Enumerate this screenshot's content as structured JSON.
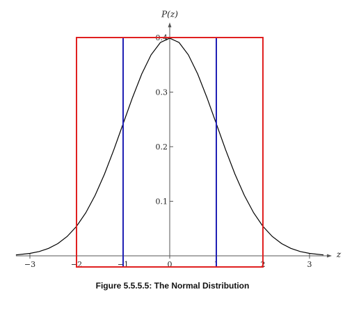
{
  "chart_data": {
    "type": "line",
    "title": "",
    "xlabel": "z",
    "ylabel": "P(z)",
    "xlim": [
      -3.3,
      3.3
    ],
    "ylim": [
      0,
      0.42
    ],
    "x_ticks": [
      -3,
      -2,
      -1,
      0,
      1,
      2,
      3
    ],
    "x_tick_labels": [
      "−3",
      "−2",
      "−1",
      "0",
      "1",
      "2",
      "3"
    ],
    "y_ticks": [
      0.1,
      0.2,
      0.3,
      0.4
    ],
    "y_tick_labels": [
      "0.1",
      "0.2",
      "0.3",
      "0.4"
    ],
    "grid": false,
    "series": [
      {
        "color": "#000000",
        "x": [
          -3.3,
          -3.0,
          -2.8,
          -2.6,
          -2.4,
          -2.2,
          -2.0,
          -1.8,
          -1.6,
          -1.4,
          -1.2,
          -1.0,
          -0.8,
          -0.6,
          -0.4,
          -0.2,
          0.0,
          0.2,
          0.4,
          0.6,
          0.8,
          1.0,
          1.2,
          1.4,
          1.6,
          1.8,
          2.0,
          2.2,
          2.4,
          2.6,
          2.8,
          3.0,
          3.3
        ],
        "y": [
          0.0017,
          0.0044,
          0.0079,
          0.0136,
          0.0224,
          0.0355,
          0.054,
          0.079,
          0.1109,
          0.1497,
          0.1942,
          0.242,
          0.2897,
          0.3332,
          0.3683,
          0.391,
          0.3989,
          0.391,
          0.3683,
          0.3332,
          0.2897,
          0.242,
          0.1942,
          0.1497,
          0.1109,
          0.079,
          0.054,
          0.0355,
          0.0224,
          0.0136,
          0.0079,
          0.0044,
          0.0017
        ]
      }
    ],
    "rectangles": [
      {
        "x0": -1,
        "x1": 1,
        "y0": 0,
        "y1": 0.4,
        "color": "#1f1fb4"
      },
      {
        "x0": -2,
        "x1": 2,
        "y0": 0,
        "y1": 0.4,
        "color": "#e02020"
      }
    ]
  },
  "caption": "Figure 5.5.5.5: The Normal Distribution"
}
